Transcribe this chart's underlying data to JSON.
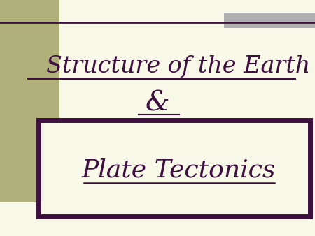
{
  "bg_color": "#f8f8e8",
  "left_bar_color": "#b0b07a",
  "top_right_color": "#b0b0b0",
  "text_color": "#3d1040",
  "title_line1": "Structure of the Earth",
  "title_line2": "&",
  "subtitle": "Plate Tectonics",
  "border_color": "#3d1040",
  "box_bg": "#f8f8e8",
  "line_color": "#3d1040",
  "figw": 4.5,
  "figh": 3.38,
  "dpi": 100
}
